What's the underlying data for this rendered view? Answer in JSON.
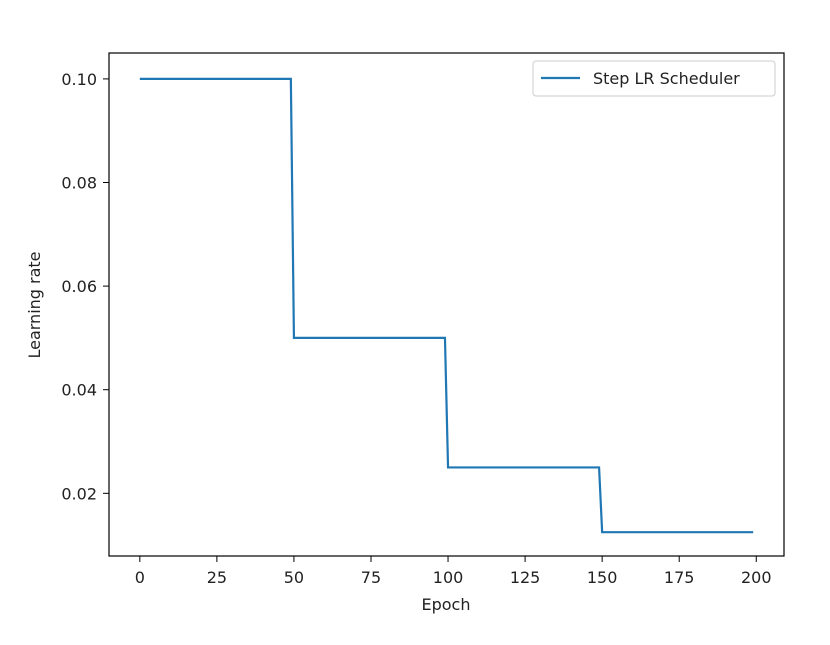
{
  "chart_data": {
    "type": "line",
    "xlabel": "Epoch",
    "ylabel": "Learning rate",
    "xlim": [
      -10,
      209
    ],
    "ylim": [
      0.0079,
      0.105
    ],
    "xticks": [
      0,
      25,
      50,
      75,
      100,
      125,
      150,
      175,
      200
    ],
    "xtick_labels": [
      "0",
      "25",
      "50",
      "75",
      "100",
      "125",
      "150",
      "175",
      "200"
    ],
    "yticks": [
      0.02,
      0.04,
      0.06,
      0.08,
      0.1
    ],
    "ytick_labels": [
      "0.02",
      "0.04",
      "0.06",
      "0.08",
      "0.10"
    ],
    "grid": false,
    "legend_position": "top-right",
    "series": [
      {
        "name": "Step LR Scheduler",
        "color": "#1f77b4",
        "x": [
          0,
          49,
          50,
          99,
          100,
          149,
          150,
          199
        ],
        "y": [
          0.1,
          0.1,
          0.05,
          0.05,
          0.025,
          0.025,
          0.0125,
          0.0125
        ]
      }
    ]
  }
}
